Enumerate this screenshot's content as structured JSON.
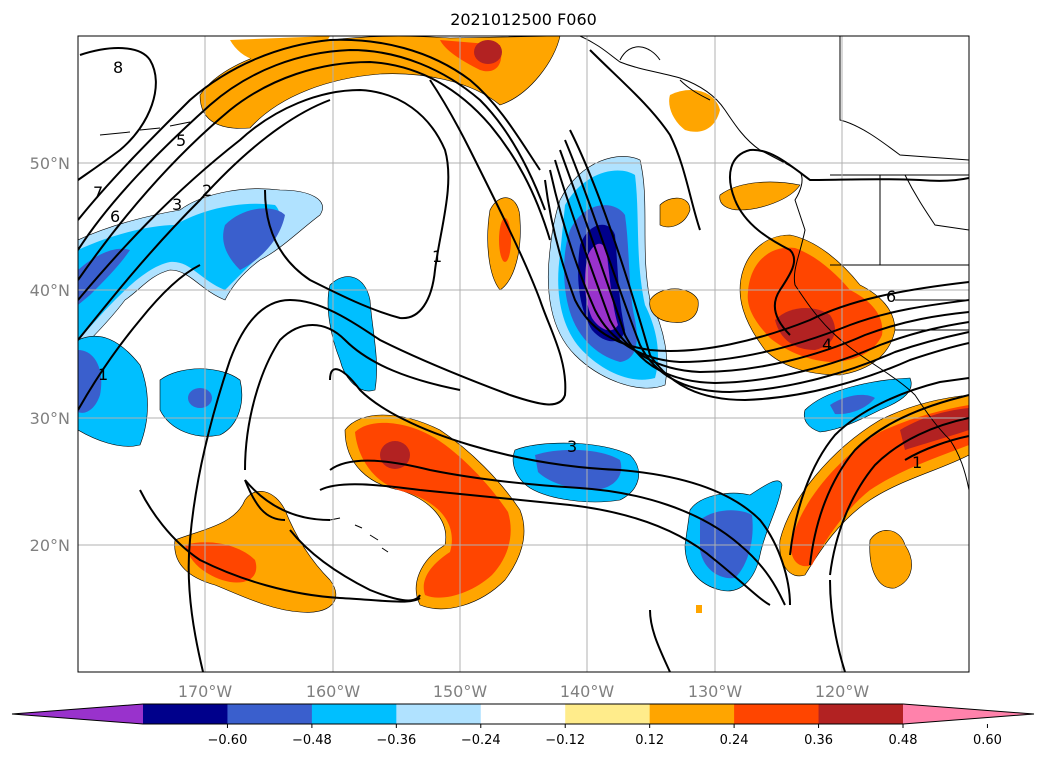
{
  "title": "2021012500 F060",
  "map": {
    "lat_labels": [
      "50°N",
      "40°N",
      "30°N",
      "20°N"
    ],
    "lon_labels": [
      "170°W",
      "160°W",
      "150°W",
      "140°W",
      "130°W",
      "120°W"
    ],
    "gridlines": true
  },
  "colorbar": {
    "ticks": [
      "−0.60",
      "−0.48",
      "−0.36",
      "−0.24",
      "−0.12",
      "0.12",
      "0.24",
      "0.36",
      "0.48",
      "0.60"
    ],
    "colors": [
      "#9932cc",
      "#00008b",
      "#3a5fcd",
      "#00bfff",
      "#b0e2ff",
      "#ffffff",
      "#ffec8b",
      "#ffa500",
      "#ff4500",
      "#b22222",
      "#ff82ab"
    ],
    "extend": "both"
  },
  "contour_labels": [
    "8",
    "7",
    "6",
    "5",
    "3",
    "2",
    "1",
    "1",
    "3",
    "6",
    "4",
    "1"
  ]
}
